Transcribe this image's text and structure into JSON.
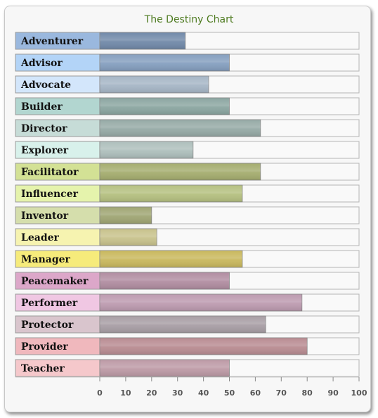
{
  "chart_data": {
    "type": "bar",
    "orientation": "horizontal",
    "title": "The Destiny Chart",
    "xlabel": "",
    "ylabel": "",
    "xlim": [
      0,
      100
    ],
    "ticks": [
      0,
      10,
      20,
      30,
      40,
      50,
      60,
      70,
      80,
      90,
      100
    ],
    "categories": [
      "Adventurer",
      "Advisor",
      "Advocate",
      "Builder",
      "Director",
      "Explorer",
      "Facilitator",
      "Influencer",
      "Inventor",
      "Leader",
      "Manager",
      "Peacemaker",
      "Performer",
      "Protector",
      "Provider",
      "Teacher"
    ],
    "values": [
      33,
      50,
      42,
      50,
      62,
      36,
      62,
      55,
      20,
      22,
      55,
      50,
      78,
      64,
      80,
      50
    ],
    "label_colors": [
      "#9ab8de",
      "#b3d4f7",
      "#d3e6fb",
      "#b2d6d0",
      "#c6dcd7",
      "#d8f1eb",
      "#d3e195",
      "#e5f3ac",
      "#d5deac",
      "#f6f3b0",
      "#f6eb7b",
      "#dca7c9",
      "#f0c7e3",
      "#d9c5cd",
      "#f0b8bd",
      "#f5c8cb"
    ],
    "bar_colors": [
      "#7189a9",
      "#859fbf",
      "#a6b6c6",
      "#8ba6a1",
      "#96aaa6",
      "#aebfbc",
      "#a5ad6f",
      "#b5c080",
      "#a0a674",
      "#c8c28c",
      "#c9b85d",
      "#b18da1",
      "#bd9bb0",
      "#a89ea5",
      "#b98c92",
      "#bd9aa6"
    ],
    "grid": false,
    "legend": "none"
  }
}
